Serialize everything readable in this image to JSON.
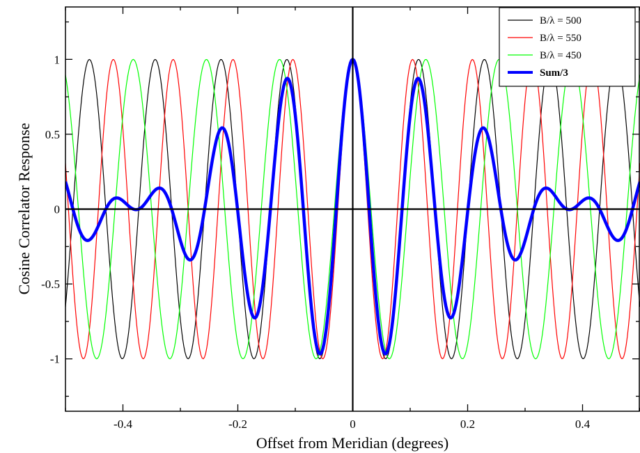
{
  "chart_data": {
    "type": "line",
    "title": "",
    "xlabel": "Offset from Meridian (degrees)",
    "ylabel": "Cosine Correlator Response",
    "xlim": [
      -0.5,
      0.5
    ],
    "ylim": [
      -1.35,
      1.35
    ],
    "x_ticks": [
      -0.4,
      -0.2,
      0,
      0.2,
      0.4
    ],
    "x_tick_labels": [
      "-0.4",
      "-0.2",
      "0",
      "0.2",
      "0.4"
    ],
    "y_ticks": [
      -1,
      -0.5,
      0,
      0.5,
      1
    ],
    "y_tick_labels": [
      "-1",
      "-0.5",
      "0",
      "0.5",
      "1"
    ],
    "grid": false,
    "legend_position": "top-right",
    "reference_lines": {
      "x": 0,
      "y": 0
    },
    "sample_step": 0.002,
    "series": [
      {
        "name": "B/λ = 500",
        "baseline_wavelengths": 500,
        "function": "cos(2π·(B/λ)·sin(θ))",
        "color": "#000000",
        "width": "thin"
      },
      {
        "name": "B/λ = 550",
        "baseline_wavelengths": 550,
        "function": "cos(2π·(B/λ)·sin(θ))",
        "color": "#ff0000",
        "width": "thin"
      },
      {
        "name": "B/λ = 450",
        "baseline_wavelengths": 450,
        "function": "cos(2π·(B/λ)·sin(θ))",
        "color": "#00ff00",
        "width": "thin"
      },
      {
        "name": "Sum/3",
        "function": "average of the three responses",
        "color": "#0000ff",
        "width": "thick"
      }
    ]
  }
}
